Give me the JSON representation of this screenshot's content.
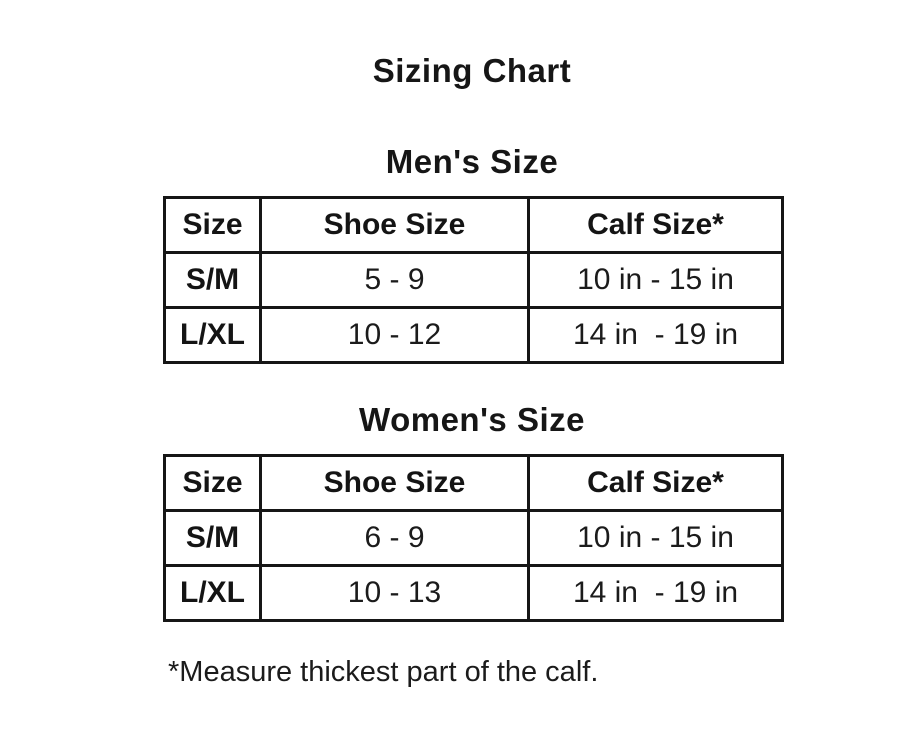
{
  "page": {
    "title": "Sizing Chart",
    "footnote": "*Measure thickest part of the calf."
  },
  "tables": [
    {
      "title": "Men's Size",
      "headers": [
        "Size",
        "Shoe Size",
        "Calf Size*"
      ],
      "rows": [
        [
          "S/M",
          "5 - 9",
          "10 in - 15 in"
        ],
        [
          "L/XL",
          "10 - 12",
          "14 in  - 19 in"
        ]
      ]
    },
    {
      "title": "Women's Size",
      "headers": [
        "Size",
        "Shoe Size",
        "Calf Size*"
      ],
      "rows": [
        [
          "S/M",
          "6 - 9",
          "10 in - 15 in"
        ],
        [
          "L/XL",
          "10 - 13",
          "14 in  - 19 in"
        ]
      ]
    }
  ]
}
